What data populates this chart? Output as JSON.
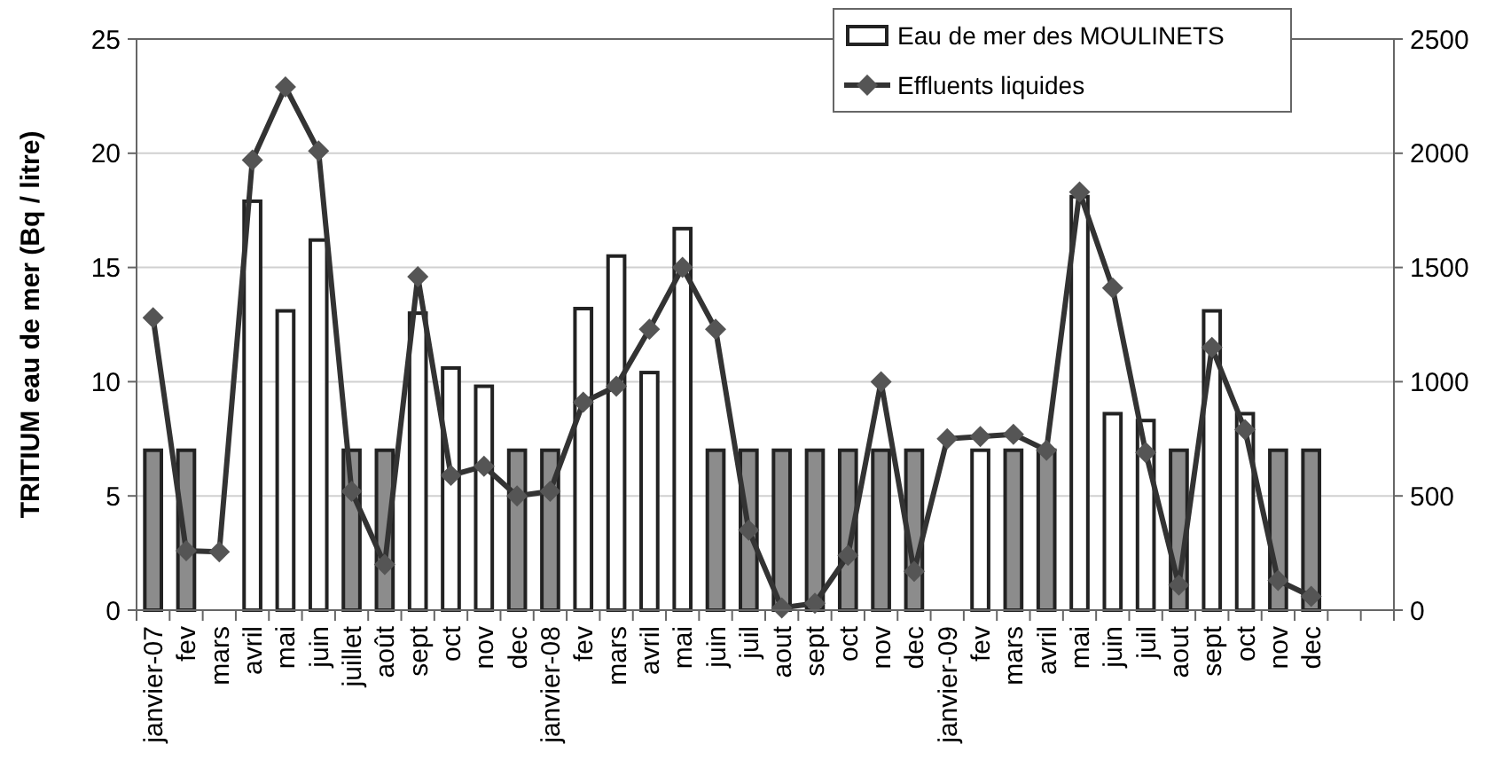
{
  "chart_data": {
    "type": "bar",
    "ylabel": "TRITIUM eau de mer (Bq / litre)",
    "categories": [
      "janvier-07",
      "fev",
      "mars",
      "avril",
      "mai",
      "juin",
      "juillet",
      "août",
      "sept",
      "oct",
      "nov",
      "dec",
      "janvier-08",
      "fev",
      "mars",
      "avril",
      "mai",
      "juin",
      "juil",
      "aout",
      "sept",
      "oct",
      "nov",
      "dec",
      "janvier-09",
      "fev",
      "mars",
      "avril",
      "mai",
      "juin",
      "juil",
      "aout",
      "sept",
      "oct",
      "nov",
      "dec",
      null,
      null
    ],
    "series": [
      {
        "name": "Eau de mer des MOULINETS",
        "color": "#ffffff",
        "colors": [
          "#8c8c8c",
          "#8c8c8c",
          null,
          "#ffffff",
          "#ffffff",
          "#ffffff",
          "#8c8c8c",
          "#8c8c8c",
          "#ffffff",
          "#ffffff",
          "#ffffff",
          "#8c8c8c",
          "#8c8c8c",
          "#ffffff",
          "#ffffff",
          "#ffffff",
          "#ffffff",
          "#8c8c8c",
          "#8c8c8c",
          "#8c8c8c",
          "#8c8c8c",
          "#8c8c8c",
          "#8c8c8c",
          "#8c8c8c",
          null,
          "#ffffff",
          "#8c8c8c",
          "#8c8c8c",
          "#ffffff",
          "#ffffff",
          "#ffffff",
          "#8c8c8c",
          "#ffffff",
          "#ffffff",
          "#8c8c8c",
          "#8c8c8c",
          null,
          null
        ],
        "values": [
          7,
          7,
          null,
          17.9,
          13.1,
          16.2,
          7,
          7,
          13,
          10.6,
          9.8,
          7,
          7,
          13.2,
          15.5,
          10.4,
          16.7,
          7,
          7,
          7,
          7,
          7,
          7,
          7,
          null,
          7,
          7,
          7,
          18.1,
          8.6,
          8.3,
          7,
          13.1,
          8.6,
          7,
          7,
          null,
          null
        ]
      },
      {
        "name": "Effluents liquides",
        "type": "line",
        "axis": "y2",
        "color": "#333333",
        "values": [
          1280,
          260,
          255,
          1970,
          2290,
          2010,
          520,
          200,
          1460,
          590,
          630,
          500,
          520,
          910,
          980,
          1230,
          1500,
          1230,
          350,
          10,
          30,
          240,
          1000,
          170,
          750,
          760,
          770,
          700,
          1830,
          1410,
          690,
          110,
          1150,
          790,
          130,
          60,
          null,
          null
        ]
      }
    ],
    "ylim": [
      0,
      25
    ],
    "yticks": [
      0,
      5,
      10,
      15,
      20,
      25
    ],
    "y2lim": [
      0,
      2500
    ],
    "y2ticks": [
      0,
      500,
      1000,
      1500,
      2000,
      2500
    ],
    "grid": "y",
    "legend": "top right",
    "marker": "diamond",
    "line_style": "solid"
  }
}
